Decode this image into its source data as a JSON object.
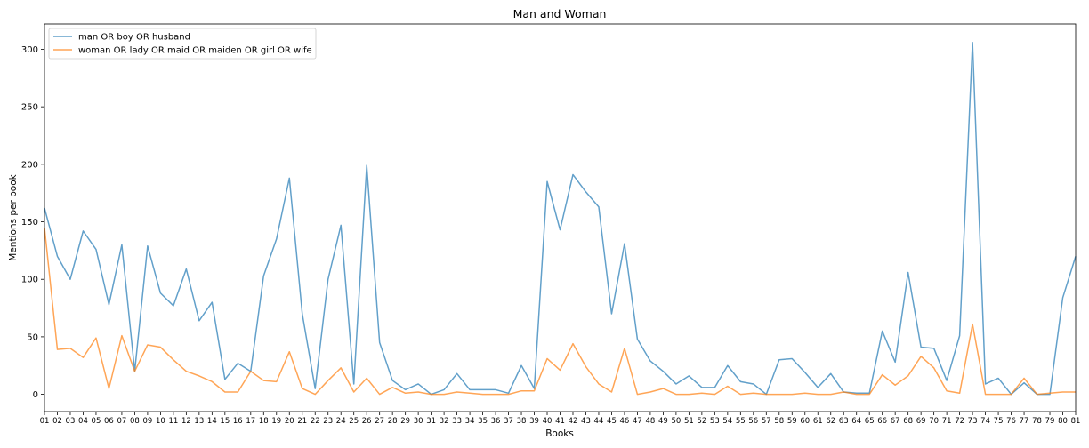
{
  "chart_data": {
    "type": "line",
    "title": "Man and Woman",
    "xlabel": "Books",
    "ylabel": "Mentions per book",
    "ylim": [
      -15,
      322
    ],
    "yticks": [
      0,
      50,
      100,
      150,
      200,
      250,
      300
    ],
    "grid": false,
    "legend_position": "top-left",
    "categories": [
      "01",
      "02",
      "03",
      "04",
      "05",
      "06",
      "07",
      "08",
      "09",
      "10",
      "11",
      "12",
      "13",
      "14",
      "15",
      "16",
      "17",
      "18",
      "19",
      "20",
      "21",
      "22",
      "23",
      "24",
      "25",
      "26",
      "27",
      "28",
      "29",
      "30",
      "31",
      "32",
      "33",
      "34",
      "35",
      "36",
      "37",
      "38",
      "39",
      "40",
      "41",
      "42",
      "43",
      "44",
      "45",
      "46",
      "47",
      "48",
      "49",
      "50",
      "51",
      "52",
      "53",
      "54",
      "55",
      "56",
      "57",
      "58",
      "59",
      "60",
      "61",
      "62",
      "63",
      "64",
      "65",
      "66",
      "67",
      "68",
      "69",
      "70",
      "71",
      "72",
      "73",
      "74",
      "75",
      "76",
      "77",
      "78",
      "79",
      "80",
      "81"
    ],
    "series": [
      {
        "name": "man OR boy OR husband",
        "color": "#1f77b4",
        "values": [
          162,
          120,
          100,
          142,
          126,
          78,
          130,
          20,
          129,
          88,
          77,
          109,
          64,
          80,
          13,
          27,
          20,
          103,
          135,
          188,
          70,
          5,
          100,
          147,
          9,
          199,
          45,
          12,
          4,
          9,
          0,
          4,
          18,
          4,
          4,
          4,
          1,
          25,
          5,
          185,
          143,
          191,
          176,
          163,
          70,
          131,
          48,
          29,
          20,
          9,
          16,
          6,
          6,
          25,
          11,
          9,
          0,
          30,
          31,
          19,
          6,
          18,
          2,
          1,
          1,
          55,
          28,
          106,
          41,
          40,
          12,
          51,
          306,
          9,
          14,
          0,
          10,
          0,
          0,
          84,
          120
        ]
      },
      {
        "name": "woman OR lady OR maid OR maiden OR girl OR wife",
        "color": "#ff7f0e",
        "values": [
          145,
          39,
          40,
          32,
          49,
          5,
          51,
          20,
          43,
          41,
          30,
          20,
          16,
          11,
          2,
          2,
          20,
          12,
          11,
          37,
          5,
          0,
          12,
          23,
          2,
          14,
          0,
          6,
          1,
          2,
          0,
          0,
          2,
          1,
          0,
          0,
          0,
          3,
          3,
          31,
          21,
          44,
          24,
          9,
          2,
          40,
          0,
          2,
          5,
          0,
          0,
          1,
          0,
          7,
          0,
          1,
          0,
          0,
          0,
          1,
          0,
          0,
          2,
          0,
          0,
          17,
          8,
          16,
          33,
          23,
          3,
          1,
          61,
          0,
          0,
          0,
          14,
          0,
          1,
          2,
          2
        ]
      }
    ]
  }
}
